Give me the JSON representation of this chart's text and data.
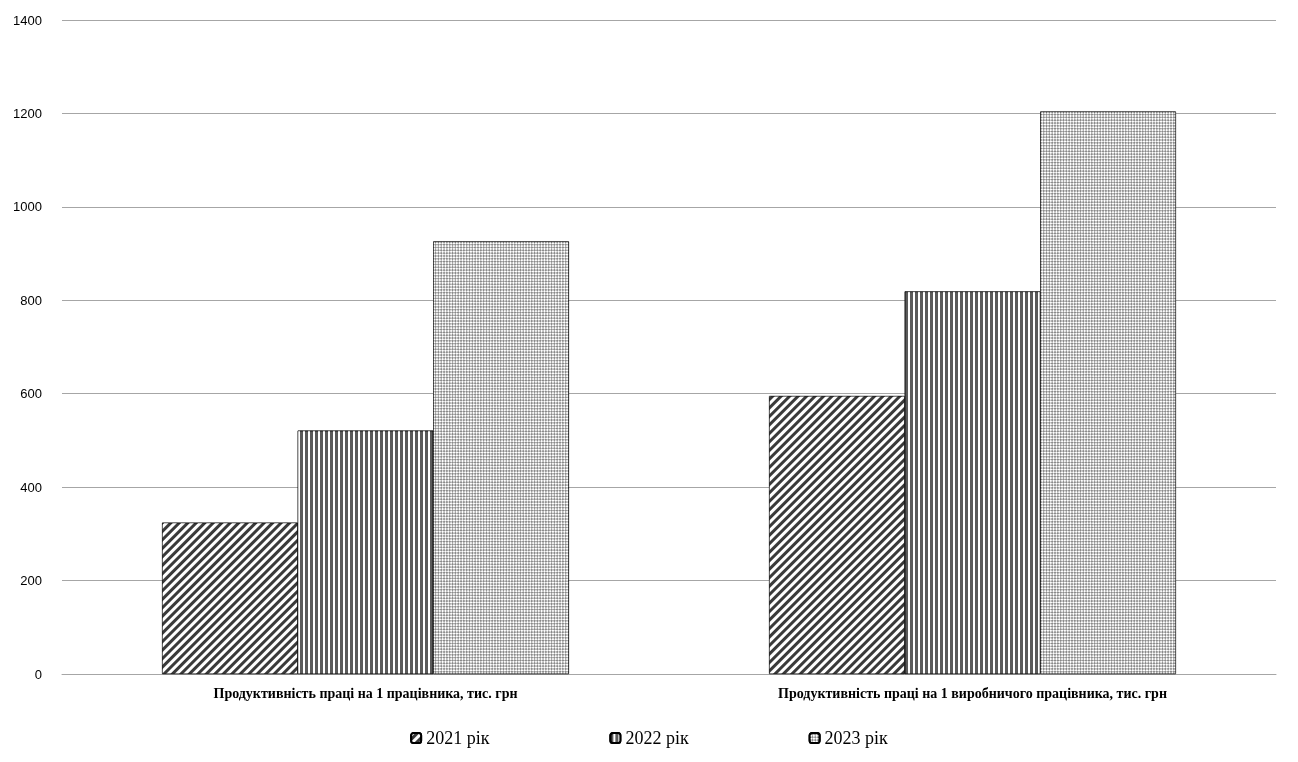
{
  "chart_data": {
    "type": "bar",
    "categories": [
      "Продуктивність праці на 1 працівника, тис. грн",
      "Продуктивність праці на 1 виробничого працівника, тис. грн"
    ],
    "series": [
      {
        "name": "2021 рік",
        "color": "#3a3a3a",
        "values": [
          324,
          595
        ]
      },
      {
        "name": "2022 рік",
        "color": "#5a5a5a",
        "values": [
          521,
          819
        ]
      },
      {
        "name": "2023 рік",
        "color": "#8a8a8a",
        "values": [
          926,
          1204
        ]
      }
    ],
    "ylim": [
      0,
      1400
    ],
    "yticks": [
      0,
      200,
      400,
      600,
      800,
      1000,
      1200,
      1400
    ],
    "grid": "y",
    "legend": "bottom"
  }
}
